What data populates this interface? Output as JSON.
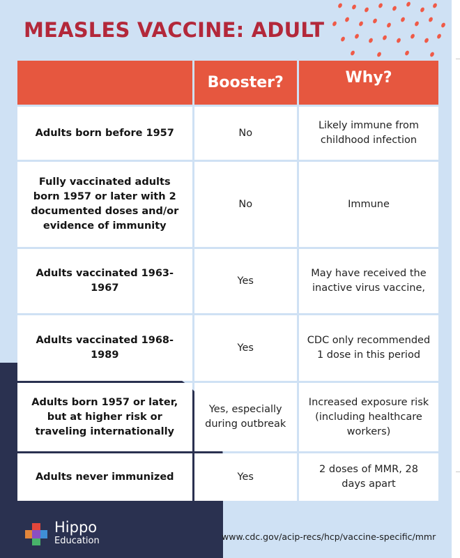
{
  "title": "MEASLES VACCINE: ADULT",
  "table": {
    "headers": [
      "",
      "Booster?",
      "Why?"
    ],
    "rows": [
      {
        "group": "Adults born before 1957",
        "booster": "No",
        "why": "Likely immune from childhood infection"
      },
      {
        "group": "Fully vaccinated adults born 1957 or later with 2 documented doses and/or evidence of immunity",
        "booster": "No",
        "why": "Immune"
      },
      {
        "group": "Adults vaccinated 1963-1967",
        "booster": "Yes",
        "why": "May have received the inactive virus vaccine,"
      },
      {
        "group": "Adults vaccinated 1968-1989",
        "booster": "Yes",
        "why": "CDC only recommended 1 dose in this period"
      },
      {
        "group": "Adults born 1957 or later, but at higher risk or traveling internationally",
        "booster": "Yes, especially during outbreak",
        "why": "Increased exposure risk (including healthcare workers)"
      },
      {
        "group": "Adults never immunized",
        "booster": "Yes",
        "why": "2 doses of MMR, 28 days apart"
      }
    ]
  },
  "brand": {
    "name": "Hippo",
    "sub": "Education"
  },
  "source_url": "www.cdc.gov/acip-recs/hcp/vaccine-specific/mmr",
  "colors": {
    "accent": "#e6573f",
    "title": "#b3283a",
    "background": "#cfe1f4",
    "navy": "#2a3150"
  },
  "icons": {
    "logo": "hippo-cross-logo-icon",
    "decoration": "coral-dot-pattern"
  }
}
